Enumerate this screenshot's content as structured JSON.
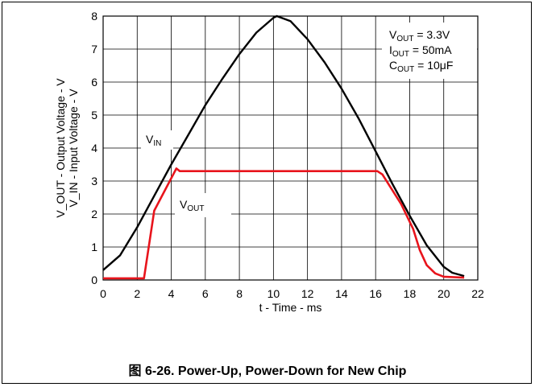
{
  "chart_data": {
    "type": "line",
    "title": "",
    "xlabel": "t - Time - ms",
    "ylabel_line1": "V_OUT - Output Voltage - V",
    "ylabel_line2": "V_IN - Input Voltage - V",
    "xlim": [
      0,
      22
    ],
    "ylim": [
      0,
      8
    ],
    "xticks": [
      0,
      2,
      4,
      6,
      8,
      10,
      12,
      14,
      16,
      18,
      20,
      22
    ],
    "yticks": [
      0,
      1,
      2,
      3,
      4,
      5,
      6,
      7,
      8
    ],
    "grid": true,
    "series": [
      {
        "name": "VIN",
        "color": "#000000",
        "x": [
          0,
          1,
          2,
          3,
          4,
          5,
          6,
          7,
          8,
          9,
          10,
          10.2,
          11,
          12,
          13,
          14,
          15,
          16,
          17,
          18,
          19,
          20,
          20.5,
          21,
          21.2
        ],
        "y": [
          0.3,
          0.75,
          1.6,
          2.55,
          3.5,
          4.4,
          5.3,
          6.1,
          6.85,
          7.5,
          7.95,
          8.0,
          7.85,
          7.3,
          6.6,
          5.8,
          4.9,
          3.9,
          2.9,
          1.95,
          1.05,
          0.4,
          0.22,
          0.15,
          0.12
        ]
      },
      {
        "name": "VOUT",
        "color": "#e8141c",
        "x": [
          0,
          2.4,
          3.0,
          4.3,
          4.5,
          6,
          10,
          16.1,
          16.4,
          17.5,
          18.2,
          18.6,
          19.0,
          19.5,
          20,
          21.2
        ],
        "y": [
          0.05,
          0.05,
          2.1,
          3.38,
          3.3,
          3.3,
          3.3,
          3.3,
          3.2,
          2.3,
          1.55,
          0.9,
          0.45,
          0.2,
          0.1,
          0.07
        ]
      }
    ],
    "annotations": {
      "vin_label": {
        "main": "V",
        "sub": "IN"
      },
      "vout_label": {
        "main": "V",
        "sub": "OUT"
      },
      "conditions": [
        {
          "main": "V",
          "sub": "OUT",
          "rest": " = 3.3V"
        },
        {
          "main": "I",
          "sub": "OUT",
          "rest": " = 50mA"
        },
        {
          "main": "C",
          "sub": "OUT",
          "rest": " = 10μF"
        }
      ]
    }
  },
  "caption": "图 6-26. Power-Up, Power-Down for New Chip"
}
